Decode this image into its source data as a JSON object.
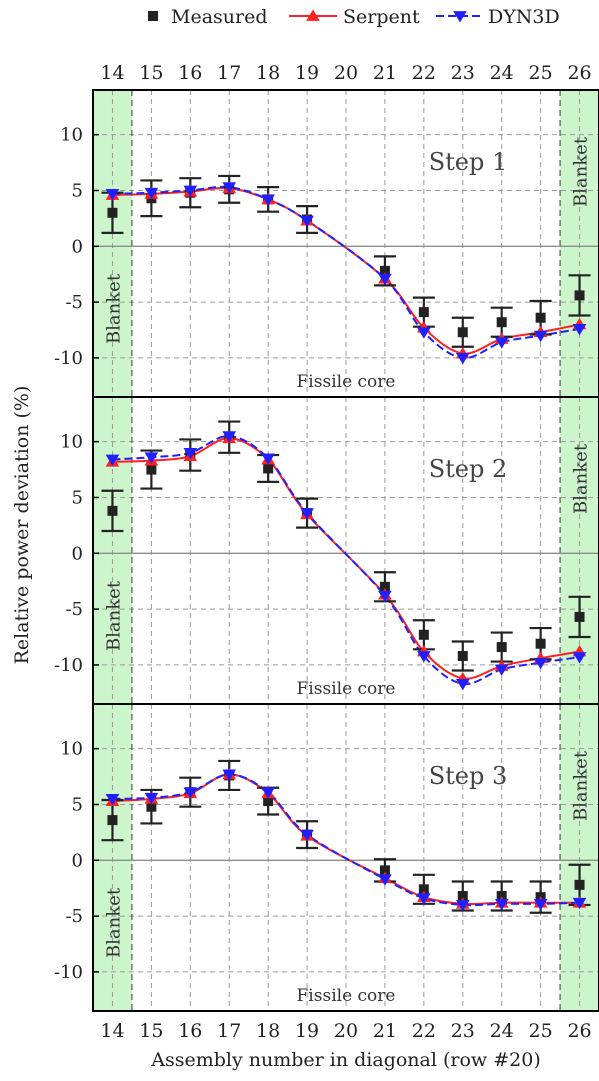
{
  "legend": {
    "placement": "top",
    "items": [
      {
        "label": "Measured",
        "color": "#222222",
        "marker": "square"
      },
      {
        "label": "Serpent",
        "color": "#ff2020",
        "marker": "triangle-up",
        "line": "solid"
      },
      {
        "label": "DYN3D",
        "color": "#2020ff",
        "marker": "triangle-down",
        "line": "dashed"
      }
    ]
  },
  "chart_data": {
    "type": "line",
    "xlabel": "Assembly number in diagonal (row #20)",
    "ylabel": "Relative power deviation (%)",
    "x_ticks": [
      14,
      15,
      16,
      17,
      18,
      19,
      20,
      21,
      22,
      23,
      24,
      25,
      26
    ],
    "y_ticks": [
      10,
      5,
      0,
      -5,
      -10
    ],
    "ylim": [
      -13.5,
      14
    ],
    "xlim": [
      13.5,
      26.5
    ],
    "grid": true,
    "blanket_label": "Blanket",
    "core_label": "Fissile core",
    "panels": [
      {
        "title": "Step 1",
        "measured": {
          "x": [
            14,
            15,
            16,
            17,
            18,
            19,
            21,
            22,
            23,
            24,
            25,
            26
          ],
          "y": [
            3.0,
            4.3,
            4.8,
            5.1,
            4.2,
            2.4,
            -2.2,
            -5.9,
            -7.7,
            -6.8,
            -6.4,
            -4.4
          ],
          "err": [
            1.8,
            1.6,
            1.3,
            1.2,
            1.1,
            1.2,
            1.3,
            1.3,
            1.3,
            1.3,
            1.5,
            1.8
          ]
        },
        "serpent": {
          "x": [
            14,
            15,
            16,
            17,
            18,
            19,
            21,
            22,
            23,
            24,
            25,
            26
          ],
          "y": [
            4.6,
            4.7,
            4.9,
            5.2,
            4.2,
            2.3,
            -2.9,
            -7.3,
            -9.6,
            -8.3,
            -7.7,
            -7.0
          ]
        },
        "dyn3d": {
          "x": [
            14,
            15,
            16,
            17,
            18,
            19,
            21,
            22,
            23,
            24,
            25,
            26
          ],
          "y": [
            4.7,
            4.8,
            5.0,
            5.3,
            4.2,
            2.3,
            -2.9,
            -7.7,
            -10.0,
            -8.6,
            -8.0,
            -7.4
          ]
        }
      },
      {
        "title": "Step 2",
        "measured": {
          "x": [
            14,
            15,
            16,
            17,
            18,
            19,
            21,
            22,
            23,
            24,
            25,
            26
          ],
          "y": [
            3.8,
            7.5,
            8.8,
            10.4,
            7.6,
            3.6,
            -3.0,
            -7.3,
            -9.2,
            -8.4,
            -8.1,
            -5.7
          ],
          "err": [
            1.8,
            1.7,
            1.4,
            1.4,
            1.2,
            1.3,
            1.3,
            1.3,
            1.3,
            1.3,
            1.4,
            1.8
          ]
        },
        "serpent": {
          "x": [
            14,
            15,
            16,
            17,
            18,
            19,
            21,
            22,
            23,
            24,
            25,
            26
          ],
          "y": [
            8.2,
            8.3,
            8.7,
            10.3,
            8.4,
            3.5,
            -3.7,
            -8.8,
            -11.2,
            -10.1,
            -9.4,
            -8.8
          ]
        },
        "dyn3d": {
          "x": [
            14,
            15,
            16,
            17,
            18,
            19,
            21,
            22,
            23,
            24,
            25,
            26
          ],
          "y": [
            8.4,
            8.6,
            9.0,
            10.5,
            8.5,
            3.6,
            -3.8,
            -9.2,
            -11.7,
            -10.4,
            -9.8,
            -9.3
          ]
        }
      },
      {
        "title": "Step 3",
        "measured": {
          "x": [
            14,
            15,
            16,
            17,
            18,
            19,
            21,
            22,
            23,
            24,
            25,
            26
          ],
          "y": [
            3.6,
            4.8,
            6.1,
            7.6,
            5.3,
            2.3,
            -0.9,
            -2.6,
            -3.2,
            -3.2,
            -3.3,
            -2.2
          ],
          "err": [
            1.8,
            1.5,
            1.3,
            1.3,
            1.2,
            1.2,
            1.0,
            1.3,
            1.3,
            1.3,
            1.4,
            1.8
          ]
        },
        "serpent": {
          "x": [
            14,
            15,
            16,
            17,
            18,
            19,
            21,
            22,
            23,
            24,
            25,
            26
          ],
          "y": [
            5.3,
            5.5,
            6.0,
            7.7,
            6.0,
            2.2,
            -1.6,
            -3.3,
            -3.9,
            -3.8,
            -3.8,
            -3.8
          ]
        },
        "dyn3d": {
          "x": [
            14,
            15,
            16,
            17,
            18,
            19,
            21,
            22,
            23,
            24,
            25,
            26
          ],
          "y": [
            5.5,
            5.6,
            6.1,
            7.7,
            6.1,
            2.3,
            -1.7,
            -3.4,
            -4.0,
            -3.9,
            -3.9,
            -3.8
          ]
        }
      }
    ]
  }
}
